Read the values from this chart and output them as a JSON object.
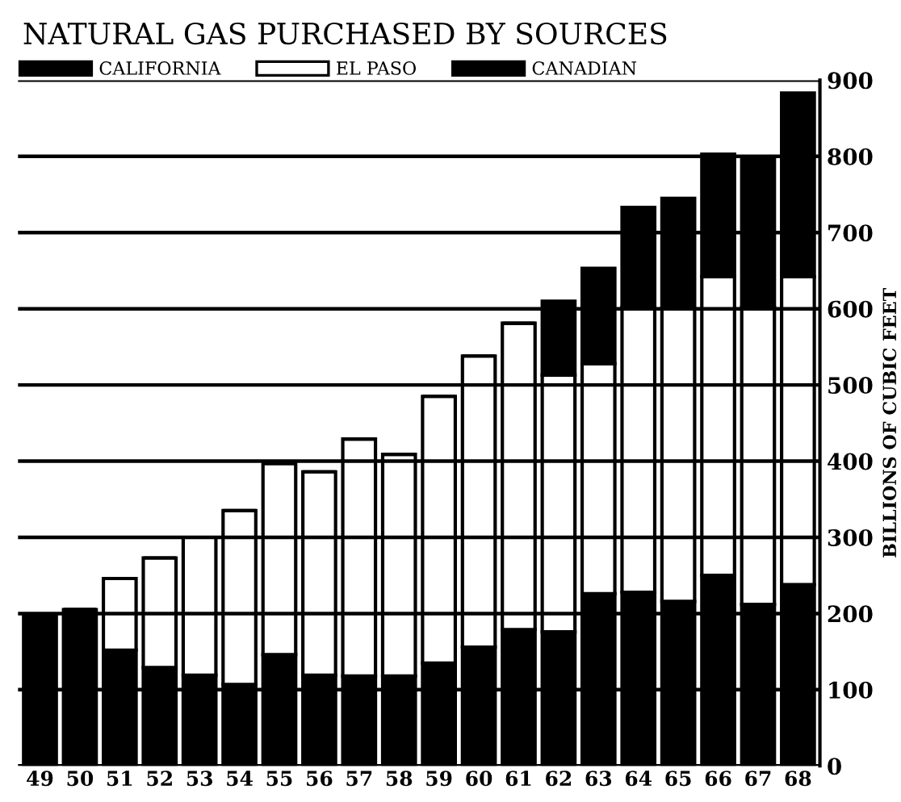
{
  "chart_data": {
    "type": "bar",
    "title": "NATURAL GAS PURCHASED BY SOURCES",
    "ylabel": "BILLIONS OF CUBIC FEET",
    "categories": [
      "49",
      "50",
      "51",
      "52",
      "53",
      "54",
      "55",
      "56",
      "57",
      "58",
      "59",
      "60",
      "61",
      "62",
      "63",
      "64",
      "65",
      "66",
      "67",
      "68"
    ],
    "stacked": true,
    "series": [
      {
        "name": "CALIFORNIA",
        "color": "#000000",
        "values": [
          198,
          205,
          152,
          129,
          119,
          107,
          146,
          119,
          118,
          118,
          135,
          156,
          179,
          176,
          226,
          228,
          216,
          250,
          212,
          238
        ]
      },
      {
        "name": "EL PASO",
        "color": "#ffffff",
        "values": [
          0,
          0,
          94,
          144,
          181,
          228,
          251,
          267,
          311,
          291,
          350,
          382,
          402,
          337,
          302,
          374,
          384,
          392,
          390,
          404
        ]
      },
      {
        "name": "CANADIAN",
        "color": "#000000",
        "values": [
          0,
          0,
          0,
          0,
          0,
          0,
          0,
          0,
          0,
          0,
          0,
          0,
          0,
          97,
          125,
          131,
          145,
          161,
          195,
          241
        ]
      }
    ],
    "ylim": [
      0,
      900
    ],
    "yticks": [
      0,
      100,
      200,
      300,
      400,
      500,
      600,
      700,
      800,
      900
    ],
    "grid": "y",
    "legend": "top"
  }
}
